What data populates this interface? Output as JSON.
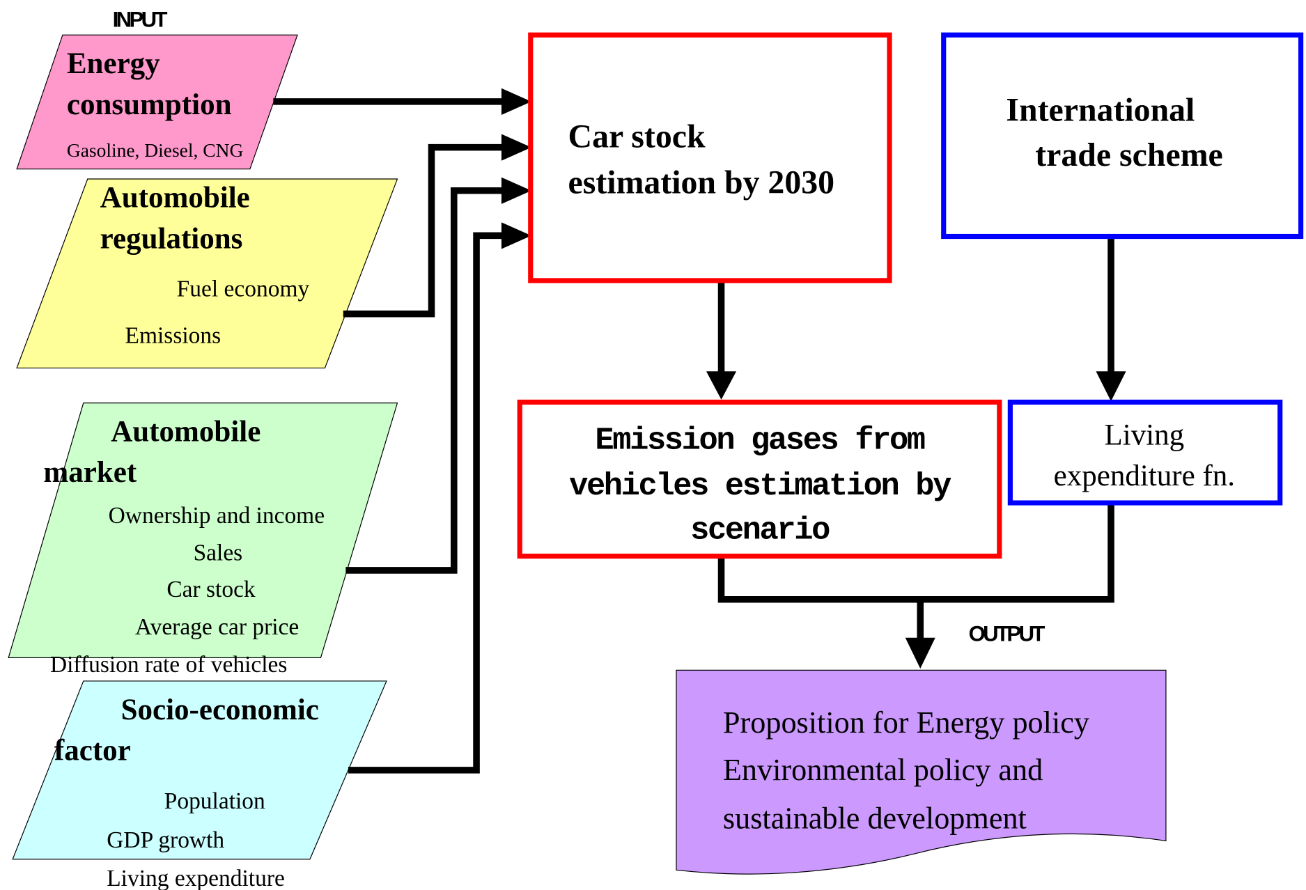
{
  "input_label": "INPUT",
  "inputs": [
    {
      "title": [
        "Energy",
        "consumption"
      ],
      "items": [
        "Gasoline, Diesel, CNG"
      ]
    },
    {
      "title": [
        "Automobile",
        "regulations"
      ],
      "items": [
        "Fuel economy",
        "Emissions"
      ]
    },
    {
      "title": [
        "Automobile",
        "market"
      ],
      "items": [
        "Ownership and income",
        "Sales",
        "Car stock",
        "Average car price",
        "Diffusion rate of  vehicles"
      ]
    },
    {
      "title": [
        "Socio-economic",
        "factor"
      ],
      "items": [
        "Population",
        "GDP growth",
        "Living expenditure"
      ]
    }
  ],
  "car_stock_box": [
    "Car stock",
    "estimation by 2030"
  ],
  "trade_box": [
    "International",
    "trade scheme"
  ],
  "emission_box": [
    "Emission gases from",
    "vehicles estimation by",
    "scenario"
  ],
  "living_box": [
    "Living",
    "expenditure fn."
  ],
  "output_label": "OUTPUT",
  "output": [
    "Proposition for Energy policy",
    "Environmental policy and",
    "sustainable development"
  ]
}
